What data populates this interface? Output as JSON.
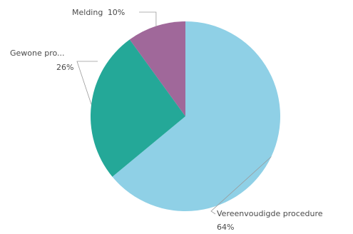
{
  "chart_data": {
    "type": "pie",
    "title": "",
    "slices": [
      {
        "label": "Vereenvoudigde procedure",
        "value": 64,
        "value_label": "64%",
        "color": "#8fd0e6"
      },
      {
        "label": "Gewone pro...",
        "value": 26,
        "value_label": "26%",
        "color": "#24a898"
      },
      {
        "label": "Melding",
        "value": 10,
        "value_label": "10%",
        "color": "#a0689a"
      }
    ],
    "start_angle_deg": 0,
    "direction": "clockwise",
    "legend": "none",
    "labels": "outside-with-leader-lines"
  }
}
